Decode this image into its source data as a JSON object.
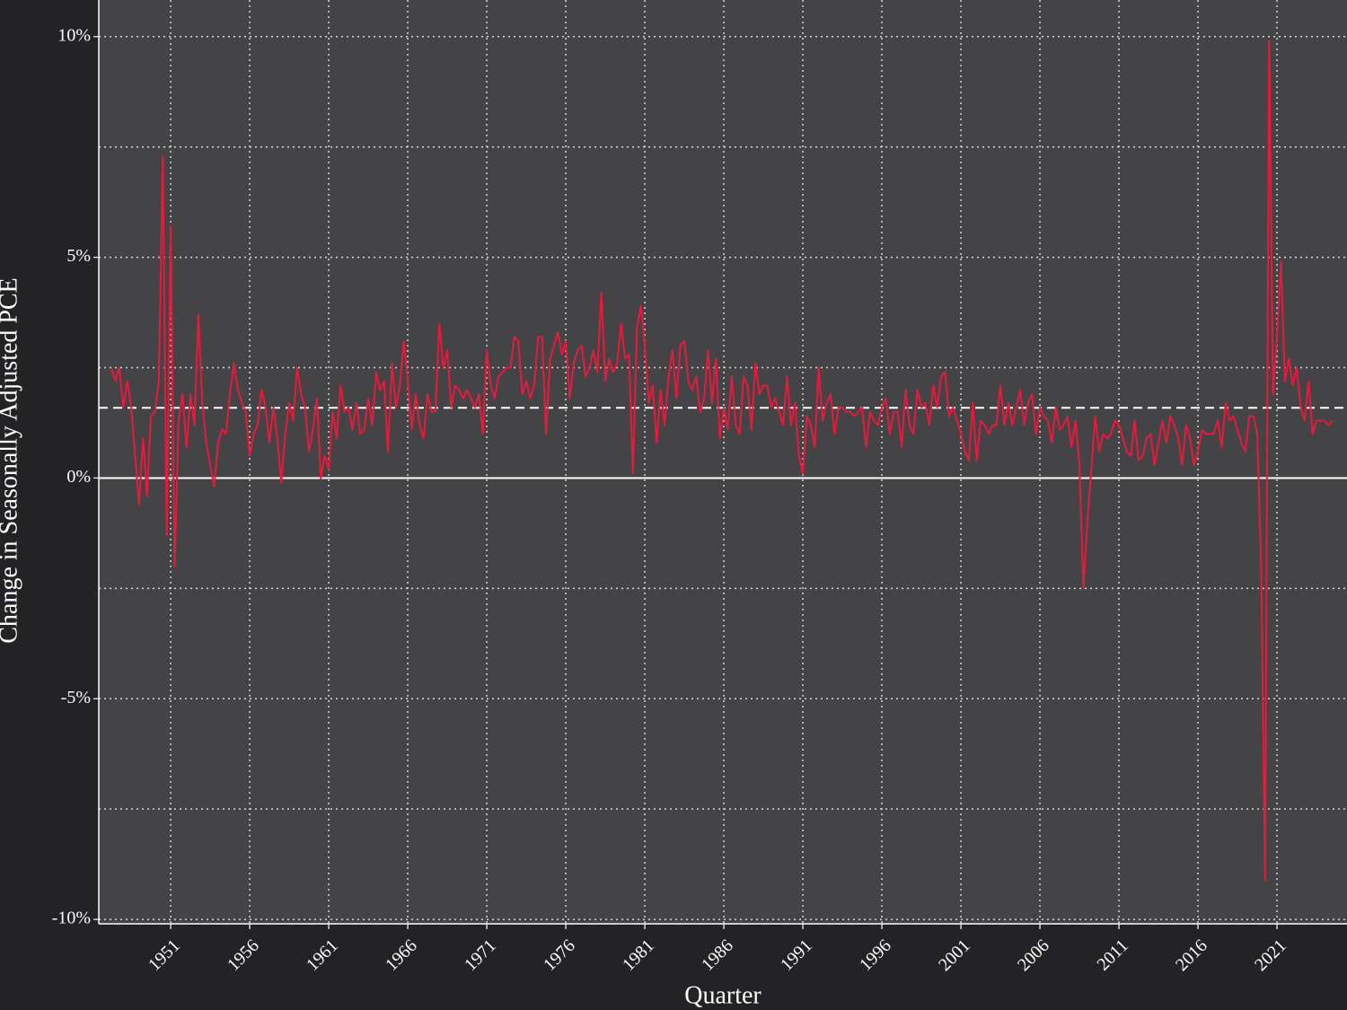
{
  "chart_data": {
    "type": "line",
    "x_label": "Quarter",
    "y_label": "Change in Seasonally Adjusted PCE",
    "color": "#e8193c",
    "grid": true,
    "xlim": [
      1946.45,
      2025.43
    ],
    "ylim": [
      -10.1,
      10.83
    ],
    "xticks": [
      1951,
      1956,
      1961,
      1966,
      1971,
      1976,
      1981,
      1986,
      1991,
      1996,
      2001,
      2006,
      2011,
      2016,
      2021
    ],
    "yticks": [
      {
        "value": -10,
        "label": "-10%"
      },
      {
        "value": -5,
        "label": "-5%"
      },
      {
        "value": 0,
        "label": "0%"
      },
      {
        "value": 5,
        "label": "5%"
      },
      {
        "value": 10,
        "label": "10%"
      }
    ],
    "y_minor_ticks": [
      -7.5,
      -2.5,
      2.5,
      7.5
    ],
    "reference_lines": [
      {
        "value": 0,
        "style": "solid"
      },
      {
        "value": 1.59,
        "style": "dashed"
      }
    ],
    "x": [
      1947.25,
      1947.5,
      1947.75,
      1948,
      1948.25,
      1948.5,
      1948.75,
      1949,
      1949.25,
      1949.5,
      1949.75,
      1950,
      1950.25,
      1950.5,
      1950.75,
      1951,
      1951.25,
      1951.5,
      1951.75,
      1952,
      1952.25,
      1952.5,
      1952.75,
      1953,
      1953.25,
      1953.5,
      1953.75,
      1954,
      1954.25,
      1954.5,
      1954.75,
      1955,
      1955.25,
      1955.5,
      1955.75,
      1956,
      1956.25,
      1956.5,
      1956.75,
      1957,
      1957.25,
      1957.5,
      1957.75,
      1958,
      1958.25,
      1958.5,
      1958.75,
      1959,
      1959.25,
      1959.5,
      1959.75,
      1960,
      1960.25,
      1960.5,
      1960.75,
      1961,
      1961.25,
      1961.5,
      1961.75,
      1962,
      1962.25,
      1962.5,
      1962.75,
      1963,
      1963.25,
      1963.5,
      1963.75,
      1964,
      1964.25,
      1964.5,
      1964.75,
      1965,
      1965.25,
      1965.5,
      1965.75,
      1966,
      1966.25,
      1966.5,
      1966.75,
      1967,
      1967.25,
      1967.5,
      1967.75,
      1968,
      1968.25,
      1968.5,
      1968.75,
      1969,
      1969.25,
      1969.5,
      1969.75,
      1970,
      1970.25,
      1970.5,
      1970.75,
      1971,
      1971.25,
      1971.5,
      1971.75,
      1972,
      1972.25,
      1972.5,
      1972.75,
      1973,
      1973.25,
      1973.5,
      1973.75,
      1974,
      1974.25,
      1974.5,
      1974.75,
      1975,
      1975.25,
      1975.5,
      1975.75,
      1976,
      1976.25,
      1976.5,
      1976.75,
      1977,
      1977.25,
      1977.5,
      1977.75,
      1978,
      1978.25,
      1978.5,
      1978.75,
      1979,
      1979.25,
      1979.5,
      1979.75,
      1980,
      1980.25,
      1980.5,
      1980.75,
      1981,
      1981.25,
      1981.5,
      1981.75,
      1982,
      1982.25,
      1982.5,
      1982.75,
      1983,
      1983.25,
      1983.5,
      1983.75,
      1984,
      1984.25,
      1984.5,
      1984.75,
      1985,
      1985.25,
      1985.5,
      1985.75,
      1986,
      1986.25,
      1986.5,
      1986.75,
      1987,
      1987.25,
      1987.5,
      1987.75,
      1988,
      1988.25,
      1988.5,
      1988.75,
      1989,
      1989.25,
      1989.5,
      1989.75,
      1990,
      1990.25,
      1990.5,
      1990.75,
      1991,
      1991.25,
      1991.5,
      1991.75,
      1992,
      1992.25,
      1992.5,
      1992.75,
      1993,
      1993.25,
      1993.5,
      1993.75,
      1994,
      1994.25,
      1994.5,
      1994.75,
      1995,
      1995.25,
      1995.5,
      1995.75,
      1996,
      1996.25,
      1996.5,
      1996.75,
      1997,
      1997.25,
      1997.5,
      1997.75,
      1998,
      1998.25,
      1998.5,
      1998.75,
      1999,
      1999.25,
      1999.5,
      1999.75,
      2000,
      2000.25,
      2000.5,
      2000.75,
      2001,
      2001.25,
      2001.5,
      2001.75,
      2002,
      2002.25,
      2002.5,
      2002.75,
      2003,
      2003.25,
      2003.5,
      2003.75,
      2004,
      2004.25,
      2004.5,
      2004.75,
      2005,
      2005.25,
      2005.5,
      2005.75,
      2006,
      2006.25,
      2006.5,
      2006.75,
      2007,
      2007.25,
      2007.5,
      2007.75,
      2008,
      2008.25,
      2008.5,
      2008.75,
      2009,
      2009.25,
      2009.5,
      2009.75,
      2010,
      2010.25,
      2010.5,
      2010.75,
      2011,
      2011.25,
      2011.5,
      2011.75,
      2012,
      2012.25,
      2012.5,
      2012.75,
      2013,
      2013.25,
      2013.5,
      2013.75,
      2014,
      2014.25,
      2014.5,
      2014.75,
      2015,
      2015.25,
      2015.5,
      2015.75,
      2016,
      2016.25,
      2016.5,
      2016.75,
      2017,
      2017.25,
      2017.5,
      2017.75,
      2018,
      2018.25,
      2018.5,
      2018.75,
      2019,
      2019.25,
      2019.5,
      2019.75,
      2020,
      2020.25,
      2020.5,
      2020.75,
      2021,
      2021.25,
      2021.5,
      2021.75,
      2022,
      2022.25,
      2022.5,
      2022.75,
      2023,
      2023.25,
      2023.5,
      2023.75,
      2024,
      2024.25,
      2024.5
    ],
    "values": [
      2.5,
      2.2,
      2.5,
      1.6,
      2.2,
      1.6,
      0.5,
      -0.6,
      0.9,
      -0.4,
      1.4,
      1.5,
      2.2,
      7.3,
      -1.3,
      5.7,
      -2.0,
      1.3,
      1.9,
      0.7,
      1.9,
      1.2,
      3.7,
      1.7,
      0.8,
      0.3,
      -0.2,
      0.8,
      1.1,
      1.0,
      1.9,
      2.6,
      2.0,
      1.7,
      1.5,
      0.5,
      1.0,
      1.2,
      2.0,
      1.6,
      0.8,
      1.6,
      0.9,
      -0.1,
      1.0,
      1.7,
      1.3,
      2.5,
      1.9,
      1.6,
      0.6,
      1.1,
      1.8,
      0.0,
      0.5,
      0.2,
      1.5,
      0.9,
      2.1,
      1.5,
      1.6,
      1.1,
      1.7,
      1.0,
      1.1,
      1.8,
      1.2,
      2.4,
      2.0,
      2.2,
      0.6,
      2.6,
      1.6,
      2.1,
      3.1,
      2.2,
      1.1,
      1.9,
      1.2,
      0.9,
      1.9,
      1.5,
      1.5,
      3.5,
      2.5,
      2.9,
      1.6,
      2.1,
      2.0,
      1.8,
      2.0,
      1.8,
      1.6,
      1.9,
      1.0,
      2.9,
      2.1,
      1.8,
      2.3,
      2.4,
      2.5,
      2.5,
      3.2,
      3.1,
      1.9,
      2.2,
      1.8,
      2.1,
      3.2,
      3.2,
      1.0,
      2.7,
      3.0,
      3.3,
      2.8,
      3.1,
      1.8,
      2.6,
      2.9,
      3.0,
      2.3,
      2.5,
      2.9,
      2.4,
      4.2,
      2.2,
      2.7,
      2.4,
      2.6,
      3.5,
      2.7,
      2.8,
      0.1,
      3.4,
      3.9,
      3.0,
      1.7,
      2.1,
      0.8,
      2.0,
      1.2,
      2.3,
      2.9,
      1.8,
      3.0,
      3.1,
      2.2,
      2.0,
      2.3,
      1.5,
      1.8,
      2.9,
      1.7,
      2.7,
      0.9,
      1.6,
      1.1,
      2.3,
      1.2,
      1.0,
      2.3,
      2.1,
      1.1,
      2.6,
      1.9,
      2.1,
      2.1,
      1.6,
      1.8,
      1.5,
      1.2,
      2.3,
      1.2,
      1.7,
      0.5,
      0.1,
      1.4,
      1.2,
      0.7,
      2.5,
      1.3,
      1.7,
      1.9,
      1.0,
      1.6,
      1.6,
      1.5,
      1.5,
      1.4,
      1.5,
      1.6,
      0.7,
      1.5,
      1.3,
      1.2,
      1.6,
      1.8,
      1.0,
      1.5,
      1.5,
      0.7,
      2.0,
      1.2,
      1.0,
      2.0,
      1.6,
      1.7,
      1.2,
      2.1,
      1.6,
      2.3,
      2.4,
      1.4,
      1.6,
      1.3,
      1.0,
      0.6,
      0.4,
      1.7,
      0.4,
      1.3,
      1.2,
      1.0,
      1.2,
      1.2,
      2.1,
      1.2,
      1.7,
      1.2,
      1.6,
      2.0,
      1.2,
      1.7,
      1.9,
      1.0,
      1.6,
      1.4,
      1.3,
      0.8,
      1.6,
      1.1,
      1.2,
      1.4,
      0.7,
      1.3,
      0.3,
      -2.5,
      -1.0,
      0.2,
      1.4,
      0.6,
      1.0,
      0.9,
      1.0,
      1.3,
      1.2,
      0.9,
      0.6,
      0.5,
      1.3,
      0.4,
      0.5,
      0.9,
      1.0,
      0.3,
      0.8,
      1.3,
      0.8,
      1.4,
      1.2,
      0.9,
      0.3,
      1.2,
      0.9,
      0.3,
      0.6,
      1.1,
      1.0,
      1.0,
      1.0,
      1.3,
      0.7,
      1.7,
      1.3,
      1.4,
      1.1,
      0.8,
      0.6,
      1.4,
      1.4,
      1.0,
      -2.0,
      -9.1,
      9.9,
      1.9,
      3.2,
      4.9,
      2.2,
      2.7,
      2.1,
      2.5,
      1.6,
      1.3,
      2.2,
      1.0,
      1.3,
      1.3,
      1.3,
      1.2,
      1.3
    ]
  }
}
